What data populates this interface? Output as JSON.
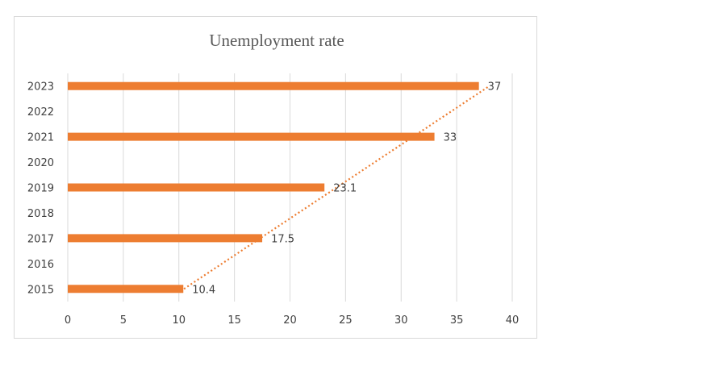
{
  "chart_data": {
    "type": "bar",
    "orientation": "horizontal",
    "title": "Unemployment rate",
    "xlabel": "",
    "ylabel": "",
    "categories": [
      "2015",
      "2016",
      "2017",
      "2018",
      "2019",
      "2020",
      "2021",
      "2022",
      "2023"
    ],
    "series": [
      {
        "values": [
          10.4,
          null,
          17.5,
          null,
          23.1,
          null,
          33,
          null,
          37
        ]
      }
    ],
    "data_labels": [
      "10.4",
      "",
      "17.5",
      "",
      "23.1",
      "",
      "33",
      "",
      "37"
    ],
    "x_ticks": [
      "0",
      "5",
      "10",
      "15",
      "20",
      "25",
      "30",
      "35",
      "40"
    ],
    "xlim": [
      0,
      40
    ],
    "grid": "vertical",
    "legend": "none",
    "trendline": {
      "type": "linear",
      "style": "dotted",
      "from_category": "2015",
      "to_category": "2023"
    },
    "colors": {
      "bar": "#ED7D31",
      "trendline": "#ED7D31",
      "grid": "#d9d9d9",
      "text": "#404040",
      "title": "#595959"
    }
  }
}
